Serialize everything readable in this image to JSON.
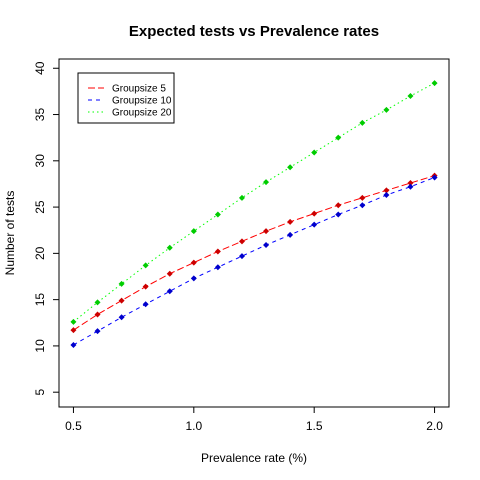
{
  "chart_data": {
    "type": "line",
    "title": "Expected tests vs Prevalence rates",
    "xlabel": "Prevalence rate (%)",
    "ylabel": "Number of tests",
    "xlim": [
      0.44,
      2.06
    ],
    "ylim": [
      3.4,
      41.0
    ],
    "xticks": [
      0.5,
      1.0,
      1.5,
      2.0
    ],
    "xtick_labels": [
      "0.5",
      "1.0",
      "1.5",
      "2.0"
    ],
    "yticks": [
      5,
      10,
      15,
      20,
      25,
      30,
      35,
      40
    ],
    "ytick_labels": [
      "5",
      "10",
      "15",
      "20",
      "25",
      "30",
      "35",
      "40"
    ],
    "grid": false,
    "legend_position": "top-left",
    "x": [
      0.5,
      0.6,
      0.7,
      0.8,
      0.9,
      1.0,
      1.1,
      1.2,
      1.3,
      1.4,
      1.5,
      1.6,
      1.7,
      1.8,
      1.9,
      2.0
    ],
    "series": [
      {
        "name": "Groupsize 5",
        "color": "#ff0000",
        "point_color": "#cc0000",
        "line_style": "dashed-long",
        "values": [
          11.7,
          13.4,
          14.9,
          16.4,
          17.8,
          19.0,
          20.2,
          21.3,
          22.4,
          23.4,
          24.3,
          25.2,
          26.0,
          26.8,
          27.6,
          28.4
        ]
      },
      {
        "name": "Groupsize 10",
        "color": "#0000ff",
        "point_color": "#0000cc",
        "line_style": "dashed",
        "values": [
          10.1,
          11.6,
          13.1,
          14.5,
          15.9,
          17.3,
          18.5,
          19.7,
          20.9,
          22.0,
          23.1,
          24.2,
          25.2,
          26.3,
          27.2,
          28.2
        ]
      },
      {
        "name": "Groupsize 20",
        "color": "#00ff00",
        "point_color": "#00cc00",
        "line_style": "dotted",
        "values": [
          12.6,
          14.7,
          16.7,
          18.7,
          20.6,
          22.4,
          24.2,
          26.0,
          27.7,
          29.3,
          30.9,
          32.5,
          34.1,
          35.5,
          37.0,
          38.4
        ]
      }
    ]
  }
}
